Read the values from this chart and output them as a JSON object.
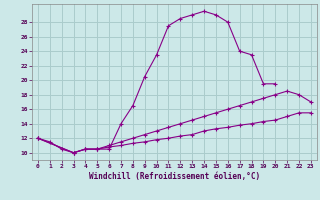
{
  "xlabel": "Windchill (Refroidissement éolien,°C)",
  "bg_color": "#cce8e8",
  "line_color": "#880088",
  "grid_color": "#aacccc",
  "xlim": [
    -0.5,
    23.5
  ],
  "ylim": [
    9.0,
    30.5
  ],
  "xticks": [
    0,
    1,
    2,
    3,
    4,
    5,
    6,
    7,
    8,
    9,
    10,
    11,
    12,
    13,
    14,
    15,
    16,
    17,
    18,
    19,
    20,
    21,
    22,
    23
  ],
  "yticks": [
    10,
    12,
    14,
    16,
    18,
    20,
    22,
    24,
    26,
    28
  ],
  "series": [
    {
      "x": [
        0,
        1,
        2,
        3,
        4,
        5,
        6,
        7,
        8,
        9,
        10,
        11,
        12,
        13,
        14,
        15,
        16,
        17,
        18,
        19,
        20
      ],
      "y": [
        12.0,
        11.5,
        10.5,
        10.0,
        10.5,
        10.5,
        10.5,
        14.0,
        16.5,
        20.5,
        23.5,
        27.5,
        28.5,
        29.0,
        29.5,
        29.0,
        28.0,
        24.0,
        23.5,
        19.5,
        19.5
      ]
    },
    {
      "x": [
        0,
        3,
        4,
        5,
        6,
        7,
        8,
        9,
        10,
        11,
        12,
        13,
        14,
        15,
        16,
        17,
        18,
        19,
        20,
        21,
        22,
        23
      ],
      "y": [
        12.0,
        10.0,
        10.5,
        10.5,
        11.0,
        11.5,
        12.0,
        12.5,
        13.0,
        13.5,
        14.0,
        14.5,
        15.0,
        15.5,
        16.0,
        16.5,
        17.0,
        17.5,
        18.0,
        18.5,
        18.0,
        17.0
      ]
    },
    {
      "x": [
        0,
        3,
        4,
        5,
        6,
        7,
        8,
        9,
        10,
        11,
        12,
        13,
        14,
        15,
        16,
        17,
        18,
        19,
        20,
        21,
        22,
        23
      ],
      "y": [
        12.0,
        10.0,
        10.5,
        10.5,
        10.8,
        11.0,
        11.3,
        11.5,
        11.8,
        12.0,
        12.3,
        12.5,
        13.0,
        13.3,
        13.5,
        13.8,
        14.0,
        14.3,
        14.5,
        15.0,
        15.5,
        15.5
      ]
    }
  ]
}
